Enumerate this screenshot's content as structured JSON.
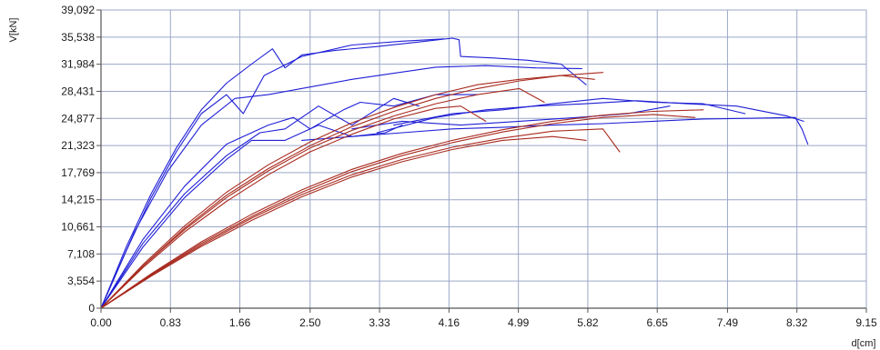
{
  "chart_data": {
    "type": "line",
    "title": "",
    "xlabel": "d[cm]",
    "ylabel": "V[kN]",
    "xlim": [
      0,
      9.15
    ],
    "ylim": [
      0,
      39.092
    ],
    "x_ticks": [
      0,
      0.83,
      1.66,
      2.5,
      3.33,
      4.16,
      4.99,
      5.82,
      6.65,
      7.49,
      8.32,
      9.15
    ],
    "x_tick_labels": [
      "0.00",
      "0.83",
      "1.66",
      "2.50",
      "3.33",
      "4.16",
      "4.99",
      "5.82",
      "6.65",
      "7.49",
      "8.32",
      "9.15"
    ],
    "y_ticks": [
      0,
      3.554,
      7.108,
      10.661,
      14.215,
      17.769,
      21.323,
      24.877,
      28.431,
      31.984,
      35.538,
      39.092
    ],
    "y_tick_labels": [
      "0",
      "3,554",
      "7,108",
      "10,661",
      "14,215",
      "17,769",
      "21,323",
      "24,877",
      "28,431",
      "31,984",
      "35,538",
      "39,092"
    ],
    "grid": true,
    "legend": "none",
    "colors": {
      "blue": "#1f1fd6",
      "red": "#a82a1e",
      "grid": "#9aa7c7",
      "axis": "#555555"
    },
    "series": [
      {
        "color": "#1f1fd6",
        "x": [
          0,
          0.3,
          0.6,
          0.9,
          1.2,
          1.5,
          1.8,
          2.05,
          2.2,
          2.4,
          2.8,
          3.3,
          3.8,
          4.2,
          4.28,
          4.3,
          4.7,
          5.1,
          5.5,
          5.8
        ],
        "y": [
          0,
          8,
          15,
          21,
          26,
          29.5,
          32,
          34,
          31.5,
          33.2,
          33.8,
          34.3,
          34.9,
          35.4,
          35.2,
          33,
          32.8,
          32.5,
          32,
          29.3
        ]
      },
      {
        "color": "#1f1fd6",
        "x": [
          0,
          0.3,
          0.6,
          0.9,
          1.2,
          1.5,
          1.7,
          1.8,
          1.95,
          2.4,
          3.0,
          3.6,
          4.1
        ],
        "y": [
          0,
          7.5,
          14.5,
          20.5,
          25.5,
          28,
          25.5,
          27.5,
          30.5,
          33,
          34.5,
          35,
          35.3
        ]
      },
      {
        "color": "#1f1fd6",
        "x": [
          0,
          0.4,
          0.8,
          1.2,
          1.6,
          2.0,
          2.5,
          3.0,
          3.5,
          4.0,
          4.6,
          5.2,
          5.75
        ],
        "y": [
          0,
          10,
          18,
          24,
          27.5,
          28,
          29,
          30,
          30.8,
          31.6,
          31.8,
          31.5,
          31.4
        ]
      },
      {
        "color": "#1f1fd6",
        "x": [
          0,
          0.5,
          1.0,
          1.5,
          2.0,
          2.3,
          2.5,
          2.9,
          3.1,
          3.5,
          4.0,
          4.5
        ],
        "y": [
          0,
          9,
          16,
          21.5,
          24,
          25,
          23.5,
          26,
          27,
          26.5,
          28,
          28
        ]
      },
      {
        "color": "#1f1fd6",
        "x": [
          0,
          0.5,
          1.0,
          1.5,
          1.9,
          2.2,
          2.6,
          3.0,
          3.5,
          3.8
        ],
        "y": [
          0,
          8.5,
          15,
          20,
          23,
          23.5,
          26.5,
          24,
          27.5,
          26.5
        ]
      },
      {
        "color": "#1f1fd6",
        "x": [
          0,
          0.5,
          1.0,
          1.5,
          1.8,
          2.2,
          2.6,
          3.0,
          3.4,
          3.6
        ],
        "y": [
          0,
          8,
          14.5,
          19.5,
          22,
          22,
          24,
          22.5,
          23,
          24
        ]
      },
      {
        "color": "#1f1fd6",
        "x": [
          2.4,
          3.0,
          3.6,
          4.2,
          4.8,
          5.4,
          6.0,
          6.6,
          7.2,
          7.8,
          8.3,
          8.38,
          8.45
        ],
        "y": [
          22,
          22.5,
          23,
          23.5,
          23.7,
          24,
          24.2,
          24.5,
          24.8,
          24.9,
          25,
          23.5,
          21.5
        ]
      },
      {
        "color": "#1f1fd6",
        "x": [
          3.3,
          4.0,
          4.6,
          5.2,
          5.8,
          6.4,
          7.0,
          7.6,
          8.2,
          8.4
        ],
        "y": [
          23,
          25,
          26,
          26.5,
          26.8,
          27.2,
          26.8,
          26.5,
          25.2,
          24.5
        ]
      },
      {
        "color": "#1f1fd6",
        "x": [
          3.5,
          4.2,
          4.8,
          5.4,
          6.0,
          6.6,
          7.2,
          7.7
        ],
        "y": [
          24,
          25.5,
          26,
          26.8,
          27.5,
          27,
          26.8,
          25.5
        ]
      },
      {
        "color": "#1f1fd6",
        "x": [
          3.0,
          3.6,
          4.3,
          5.0,
          5.7,
          6.3,
          6.8
        ],
        "y": [
          23.5,
          24.5,
          24,
          24.5,
          25,
          25.5,
          26.5
        ]
      },
      {
        "color": "#a82a1e",
        "x": [
          0,
          0.5,
          1.0,
          1.5,
          2.0,
          2.5,
          3.0,
          3.5,
          4.0,
          4.5,
          5.0,
          5.5,
          6.0
        ],
        "y": [
          0,
          5.5,
          10.5,
          14.8,
          18.3,
          21.3,
          23.8,
          25.8,
          27.5,
          28.8,
          29.8,
          30.5,
          30.9
        ]
      },
      {
        "color": "#a82a1e",
        "x": [
          0,
          0.5,
          1.0,
          1.5,
          2.0,
          2.5,
          3.0,
          3.5,
          4.0,
          4.5,
          5.0,
          5.5,
          5.9
        ],
        "y": [
          0,
          5.7,
          10.8,
          15.2,
          18.8,
          21.8,
          24.3,
          26.3,
          28,
          29.3,
          30,
          30.5,
          30
        ]
      },
      {
        "color": "#a82a1e",
        "x": [
          0,
          0.5,
          1.0,
          1.5,
          2.0,
          2.5,
          3.0,
          3.5,
          4.0,
          4.5,
          5.0,
          5.3
        ],
        "y": [
          0,
          5.5,
          10.3,
          14.5,
          18,
          21,
          23.3,
          25.2,
          26.8,
          28,
          28.8,
          27
        ]
      },
      {
        "color": "#a82a1e",
        "x": [
          0,
          0.5,
          1.0,
          1.5,
          2.0,
          2.5,
          3.0,
          3.5,
          4.0,
          4.3,
          4.6
        ],
        "y": [
          0,
          5.3,
          10,
          14,
          17.5,
          20.5,
          22.8,
          24.8,
          26.2,
          26.5,
          24.5
        ]
      },
      {
        "color": "#a82a1e",
        "x": [
          0,
          0.6,
          1.2,
          1.8,
          2.4,
          3.0,
          3.6,
          4.2,
          4.8,
          5.4,
          6.0,
          6.6,
          7.2
        ],
        "y": [
          0,
          4.5,
          8.7,
          12.3,
          15.5,
          18.2,
          20.3,
          22,
          23.4,
          24.5,
          25.3,
          25.8,
          26
        ]
      },
      {
        "color": "#a82a1e",
        "x": [
          0,
          0.6,
          1.2,
          1.8,
          2.4,
          3.0,
          3.6,
          4.2,
          4.8,
          5.4,
          6.0,
          6.6,
          7.1
        ],
        "y": [
          0,
          4.4,
          8.5,
          12,
          15.2,
          17.9,
          20,
          21.7,
          23.1,
          24.2,
          25,
          25.4,
          25
        ]
      },
      {
        "color": "#a82a1e",
        "x": [
          0,
          0.6,
          1.2,
          1.8,
          2.4,
          3.0,
          3.6,
          4.2,
          4.8,
          5.4,
          6.0,
          6.2
        ],
        "y": [
          0,
          4.3,
          8.3,
          11.8,
          14.9,
          17.5,
          19.5,
          21.1,
          22.3,
          23.2,
          23.5,
          20.5
        ]
      },
      {
        "color": "#a82a1e",
        "x": [
          0,
          0.6,
          1.2,
          1.8,
          2.4,
          3.0,
          3.6,
          4.2,
          4.8,
          5.4,
          5.8
        ],
        "y": [
          0,
          4.2,
          8.1,
          11.5,
          14.6,
          17.2,
          19.2,
          20.8,
          22,
          22.5,
          22
        ]
      }
    ]
  }
}
